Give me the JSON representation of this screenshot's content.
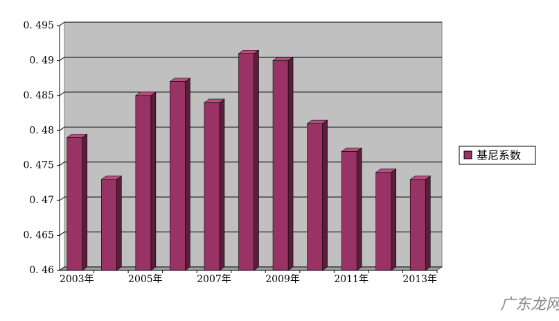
{
  "chart_data": {
    "type": "bar",
    "categories": [
      "2003年",
      null,
      "2005年",
      null,
      "2007年",
      null,
      "2009年",
      null,
      "2011年",
      null,
      "2013年"
    ],
    "series": [
      {
        "name": "基尼系数",
        "color": "#993366",
        "values": [
          0.479,
          0.473,
          0.485,
          0.487,
          0.484,
          0.491,
          0.49,
          0.481,
          0.477,
          0.474,
          0.473
        ]
      }
    ],
    "ylim": [
      0.46,
      0.495
    ],
    "yticks": [
      {
        "value": 0.46,
        "label": "0. 46"
      },
      {
        "value": 0.465,
        "label": "0. 465"
      },
      {
        "value": 0.47,
        "label": "0. 47"
      },
      {
        "value": 0.475,
        "label": "0. 475"
      },
      {
        "value": 0.48,
        "label": "0. 48"
      },
      {
        "value": 0.485,
        "label": "0. 485"
      },
      {
        "value": 0.49,
        "label": "0. 49"
      },
      {
        "value": 0.495,
        "label": "0. 495"
      }
    ],
    "grid": true,
    "legend": "right",
    "watermark": "广东龙网"
  }
}
